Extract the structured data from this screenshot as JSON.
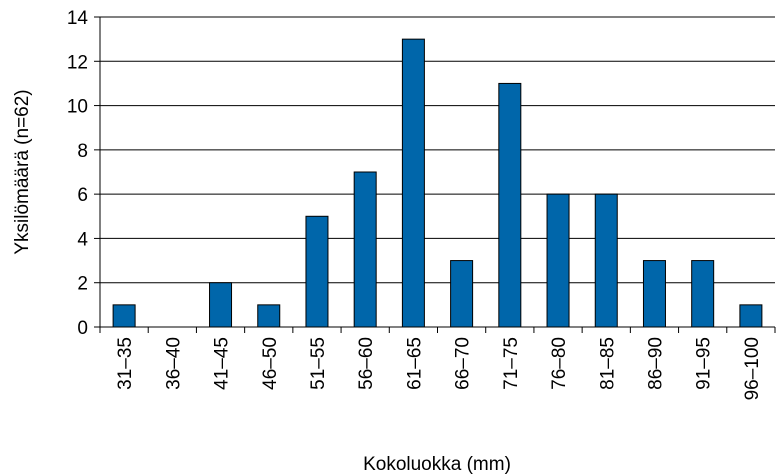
{
  "chart_data": {
    "type": "bar",
    "categories": [
      "31–35",
      "36–40",
      "41–45",
      "46–50",
      "51–55",
      "56–60",
      "61–65",
      "66–70",
      "71–75",
      "76–80",
      "81–85",
      "86–90",
      "91–95",
      "96–100"
    ],
    "values": [
      1,
      0,
      2,
      1,
      5,
      7,
      13,
      3,
      11,
      6,
      6,
      3,
      3,
      1
    ],
    "color": "#0066aa",
    "xlabel": "Kokoluokka (mm)",
    "ylabel": "Yksilömäärä (n=62)",
    "ylim": [
      0,
      14
    ],
    "yticks": [
      0,
      2,
      4,
      6,
      8,
      10,
      12,
      14
    ],
    "grid": true
  }
}
